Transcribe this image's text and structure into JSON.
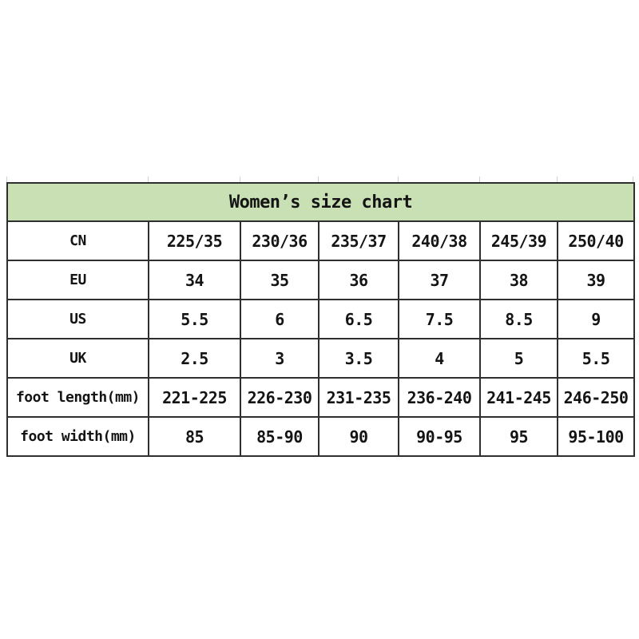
{
  "page": {
    "background": "#ffffff"
  },
  "table": {
    "title": "Women’s size chart",
    "header_bg": "#c8e0b4",
    "border_color": "#2f2f2f",
    "text_color": "#141414",
    "rows": [
      {
        "label": "CN",
        "values": [
          "225/35",
          "230/36",
          "235/37",
          "240/38",
          "245/39",
          "250/40"
        ]
      },
      {
        "label": "EU",
        "values": [
          "34",
          "35",
          "36",
          "37",
          "38",
          "39"
        ]
      },
      {
        "label": "US",
        "values": [
          "5.5",
          "6",
          "6.5",
          "7.5",
          "8.5",
          "9"
        ]
      },
      {
        "label": "UK",
        "values": [
          "2.5",
          "3",
          "3.5",
          "4",
          "5",
          "5.5"
        ]
      },
      {
        "label": "foot length(mm)",
        "values": [
          "221-225",
          "226-230",
          "231-235",
          "236-240",
          "241-245",
          "246-250"
        ]
      },
      {
        "label": "foot width(mm)",
        "values": [
          "85",
          "85-90",
          "90",
          "90-95",
          "95",
          "95-100"
        ]
      }
    ]
  },
  "chart_data": {
    "type": "table",
    "title": "Women’s size chart",
    "row_headers": [
      "CN",
      "EU",
      "US",
      "UK",
      "foot length(mm)",
      "foot width(mm)"
    ],
    "rows": [
      [
        "225/35",
        "230/36",
        "235/37",
        "240/38",
        "245/39",
        "250/40"
      ],
      [
        "34",
        "35",
        "36",
        "37",
        "38",
        "39"
      ],
      [
        "5.5",
        "6",
        "6.5",
        "7.5",
        "8.5",
        "9"
      ],
      [
        "2.5",
        "3",
        "3.5",
        "4",
        "5",
        "5.5"
      ],
      [
        "221-225",
        "226-230",
        "231-235",
        "236-240",
        "241-245",
        "246-250"
      ],
      [
        "85",
        "85-90",
        "90",
        "90-95",
        "95",
        "95-100"
      ]
    ],
    "layout": {
      "header_fill": "#c8e0b4",
      "grid": true,
      "title_row_spans_all_columns": true
    }
  }
}
